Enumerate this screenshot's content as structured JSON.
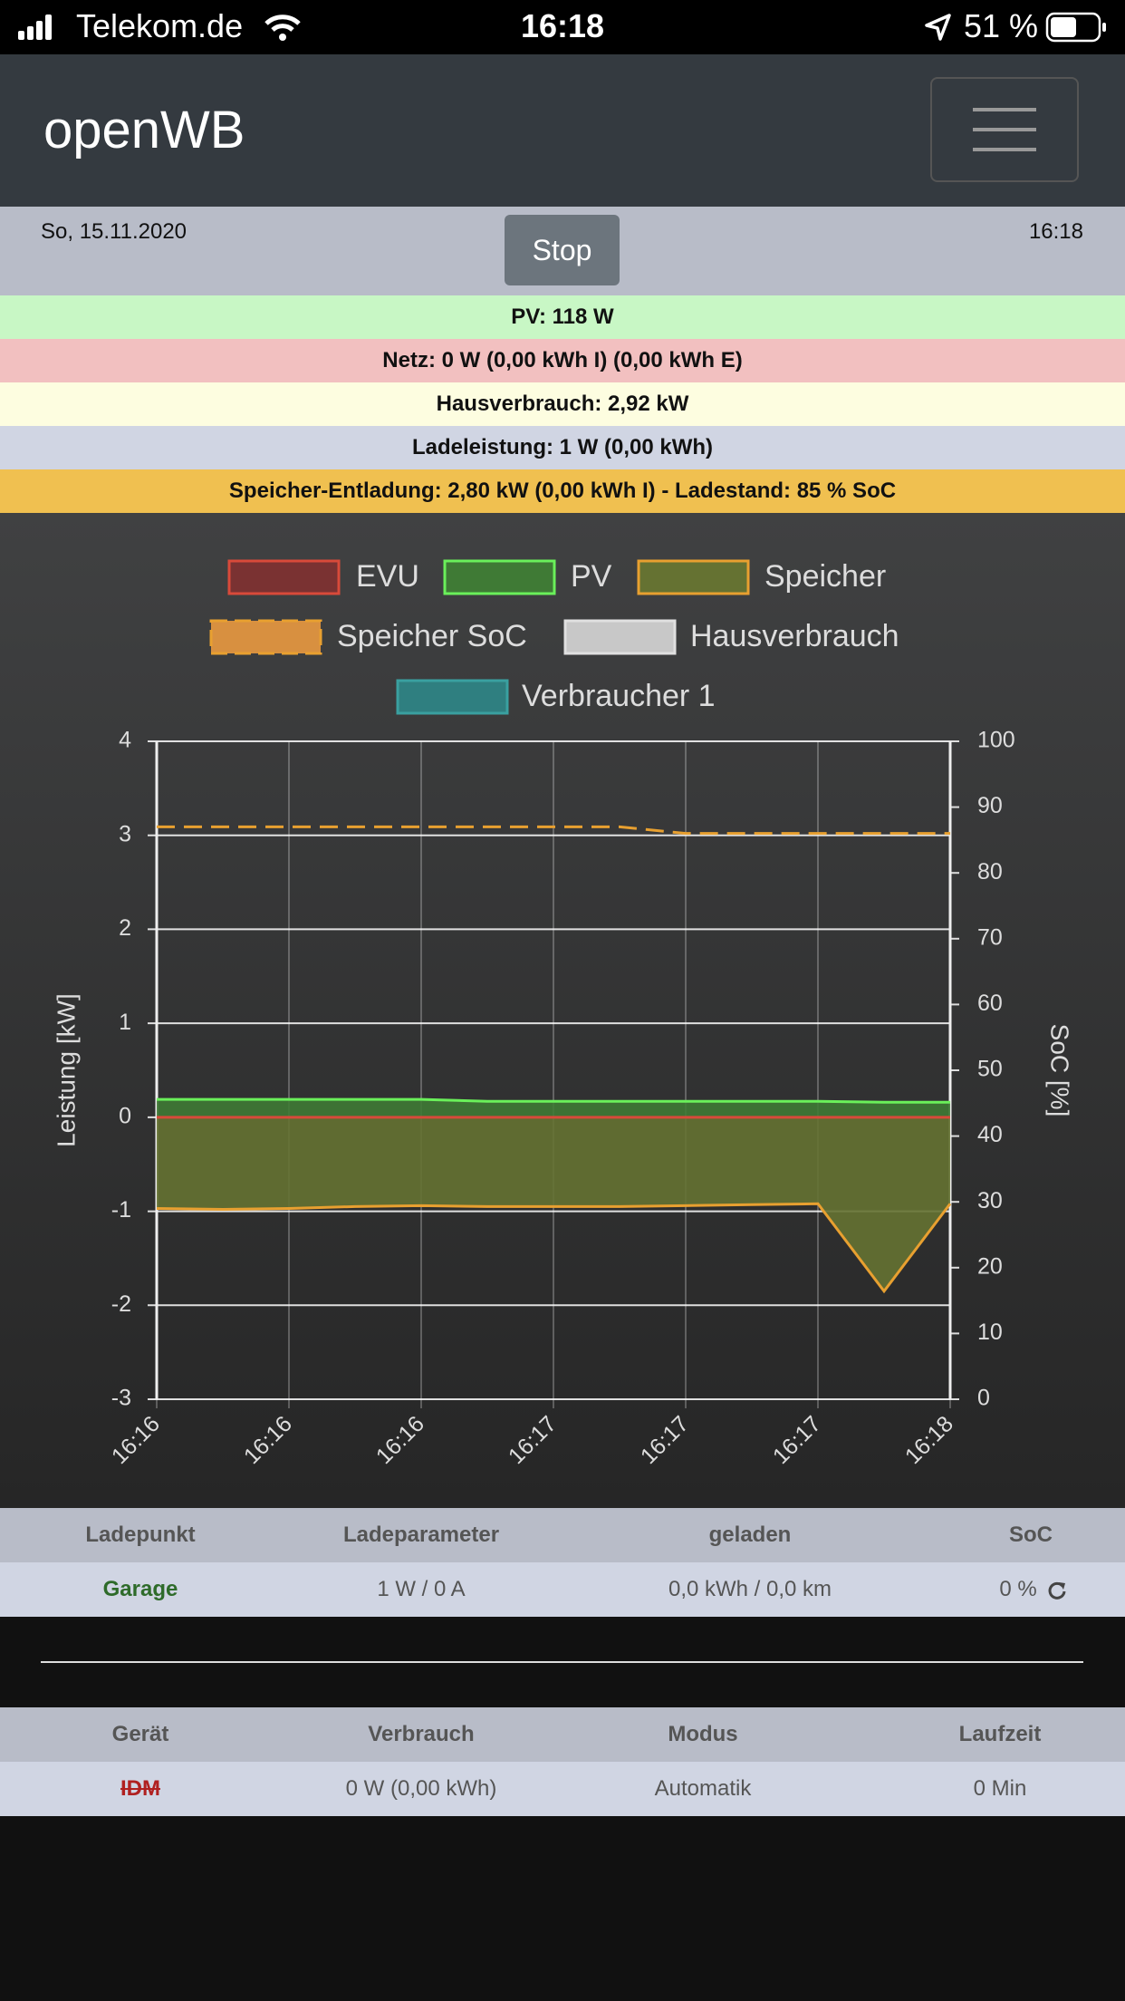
{
  "status_bar": {
    "carrier": "Telekom.de",
    "time": "16:18",
    "battery": "51 %"
  },
  "navbar": {
    "brand": "openWB"
  },
  "info": {
    "date": "So, 15.11.2020",
    "button": "Stop",
    "time": "16:18"
  },
  "banners": [
    "PV: 118 W",
    "Netz: 0 W (0,00 kWh I) (0,00 kWh E)",
    "Hausverbrauch: 2,92 kW",
    "Ladeleistung: 1 W (0,00 kWh)",
    "Speicher-Entladung: 2,80 kW (0,00 kWh I) - Ladestand: 85 % SoC"
  ],
  "chart_data": {
    "type": "line",
    "categories": [
      "16:16",
      null,
      "16:16",
      null,
      "16:16",
      null,
      "16:17",
      null,
      "16:17",
      null,
      "16:17",
      null,
      "16:18"
    ],
    "ylabel": "Leistung [kW]",
    "y2label": "SoC [%]",
    "ylim": [
      -3,
      4
    ],
    "yticks": [
      -3,
      -2,
      -1,
      0,
      1,
      2,
      3,
      4
    ],
    "y2lim": [
      0,
      100
    ],
    "y2ticks": [
      0,
      10,
      20,
      30,
      40,
      50,
      60,
      70,
      80,
      90,
      100
    ],
    "grid": true,
    "series": [
      {
        "name": "EVU",
        "color": "#d84a3a",
        "fill": "#7a3232",
        "values": [
          0,
          0,
          0,
          0,
          0,
          0,
          0,
          0,
          0,
          0,
          0,
          0,
          0
        ]
      },
      {
        "name": "PV",
        "color": "#6af05a",
        "fill": "#3f7a35",
        "area": true,
        "values": [
          0.19,
          0.19,
          0.19,
          0.19,
          0.19,
          0.17,
          0.17,
          0.17,
          0.17,
          0.17,
          0.17,
          0.16,
          0.16
        ]
      },
      {
        "name": "Speicher",
        "color": "#e8a030",
        "fill": "#657232",
        "area": true,
        "values": [
          -0.97,
          -0.98,
          -0.97,
          -0.95,
          -0.94,
          -0.95,
          -0.95,
          -0.95,
          -0.94,
          -0.93,
          -0.92,
          -1.85,
          -0.92
        ]
      },
      {
        "name": "Speicher SoC",
        "color": "#e8a030",
        "fill": "#d89040",
        "dashed": true,
        "axis": "y2",
        "values": [
          87,
          87,
          87,
          87,
          87,
          87,
          87,
          87,
          86,
          86,
          86,
          86,
          86
        ]
      },
      {
        "name": "Hausverbrauch",
        "color": "#e0e0e0",
        "fill": "#c8c8c8",
        "values": [
          null,
          null,
          null,
          null,
          null,
          null,
          null,
          null,
          null,
          null,
          null,
          null,
          null
        ]
      },
      {
        "name": "Verbraucher 1",
        "color": "#3aa0a0",
        "fill": "#2f7f80",
        "values": [
          null,
          null,
          null,
          null,
          null,
          null,
          null,
          null,
          null,
          null,
          null,
          null,
          null
        ]
      }
    ]
  },
  "table1": {
    "headers": [
      "Ladepunkt",
      "Ladeparameter",
      "geladen",
      "SoC"
    ],
    "row": [
      "Garage",
      "1 W / 0 A",
      "0,0 kWh / 0,0 km",
      "0 %"
    ]
  },
  "table2": {
    "headers": [
      "Gerät",
      "Verbrauch",
      "Modus",
      "Laufzeit"
    ],
    "row": [
      "IDM",
      "0 W (0,00 kWh)",
      "Automatik",
      "0 Min"
    ]
  }
}
